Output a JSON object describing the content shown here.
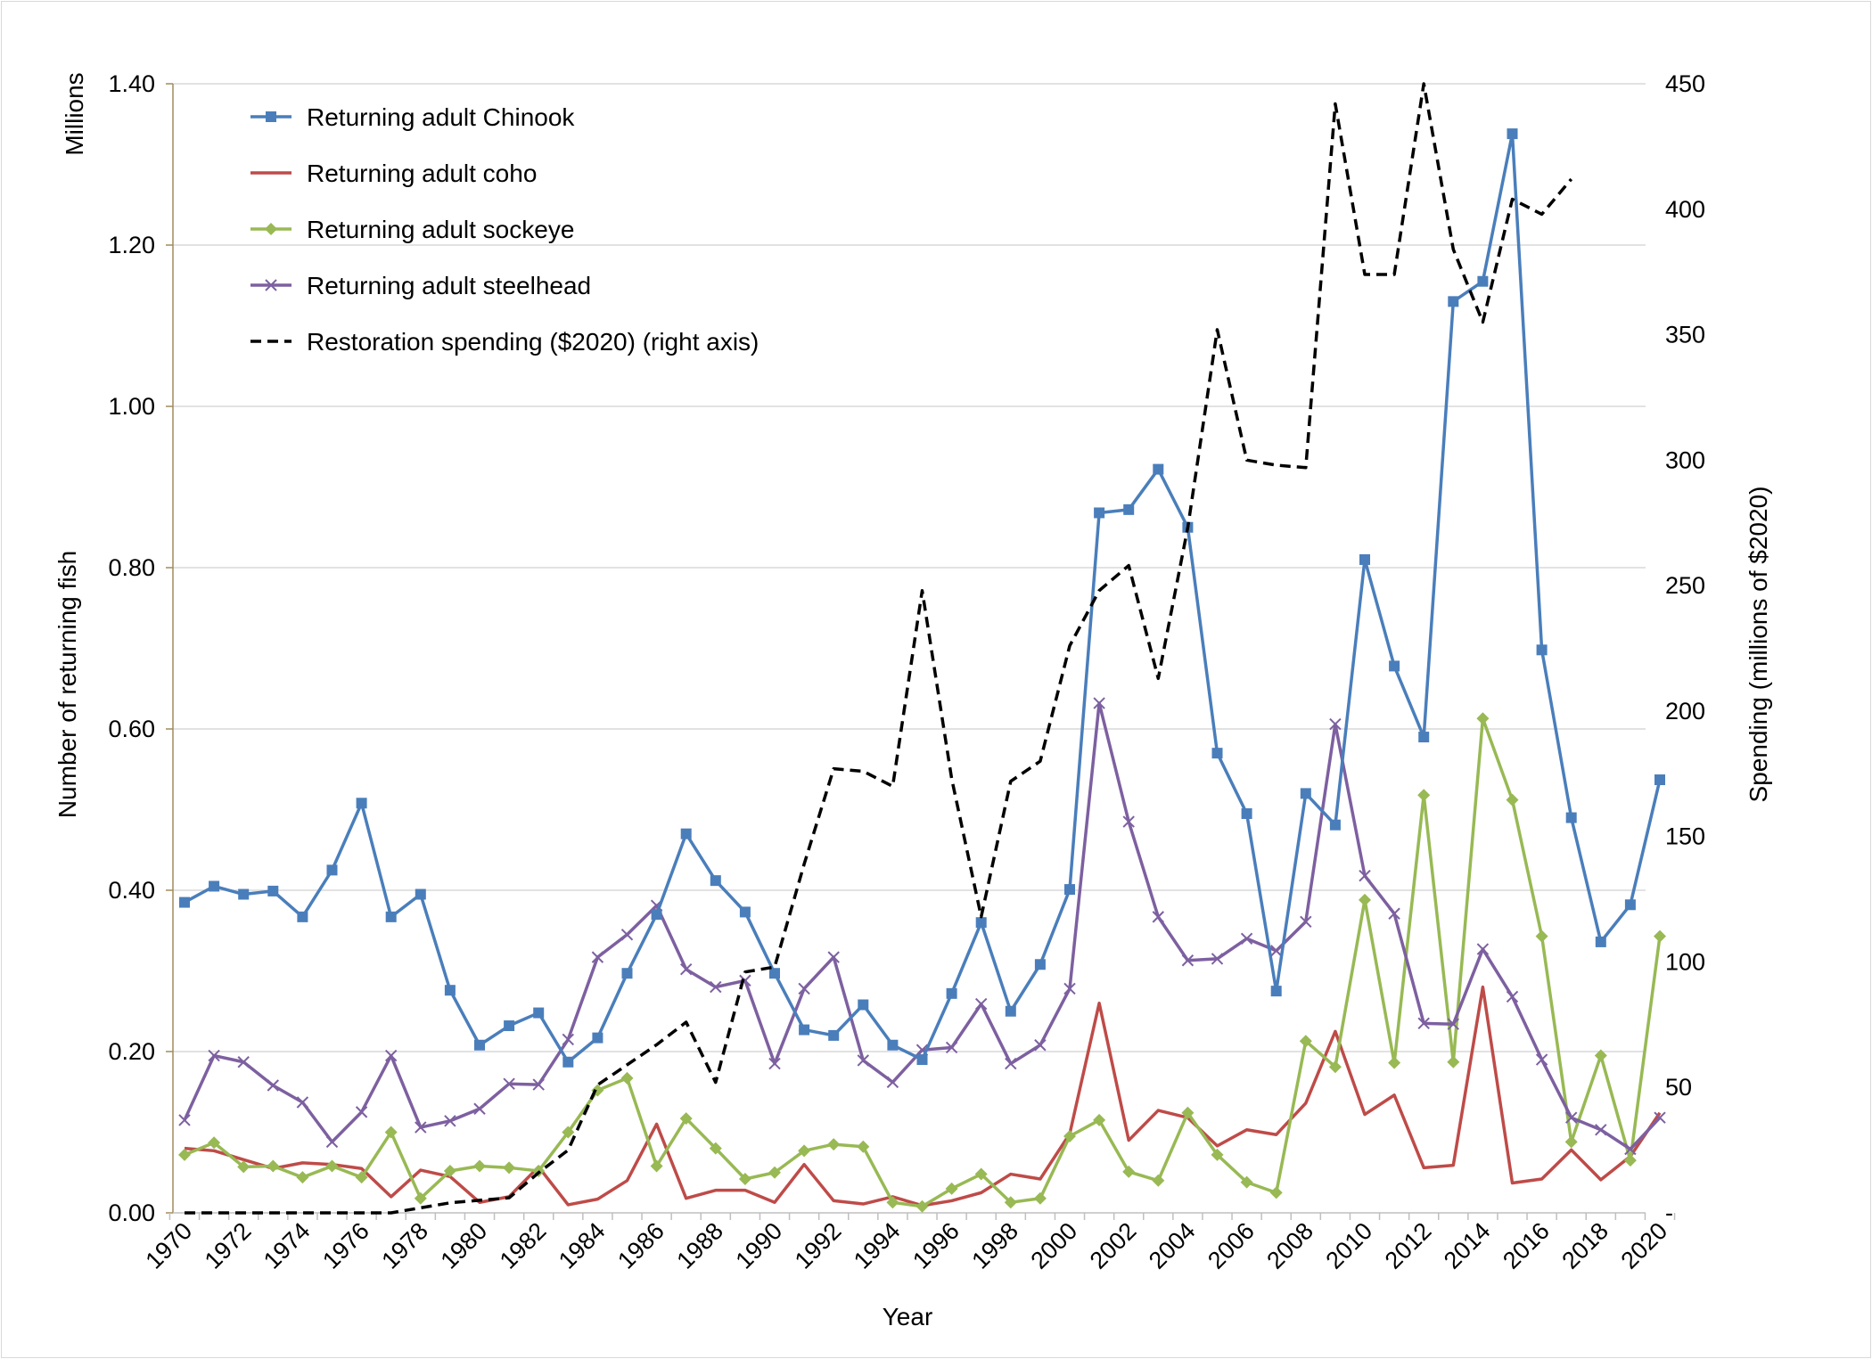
{
  "chart_data": {
    "type": "line",
    "title": "",
    "xlabel": "Year",
    "ylabel": "Number of returning fish",
    "y_unit_label": "Millions",
    "y2label": "Spending (millions of $2020)",
    "x": [
      1970,
      1971,
      1972,
      1973,
      1974,
      1975,
      1976,
      1977,
      1978,
      1979,
      1980,
      1981,
      1982,
      1983,
      1984,
      1985,
      1986,
      1987,
      1988,
      1989,
      1990,
      1991,
      1992,
      1993,
      1994,
      1995,
      1996,
      1997,
      1998,
      1999,
      2000,
      2001,
      2002,
      2003,
      2004,
      2005,
      2006,
      2007,
      2008,
      2009,
      2010,
      2011,
      2012,
      2013,
      2014,
      2015,
      2016,
      2017,
      2018,
      2019,
      2020
    ],
    "x_tick_labels": [
      "1970",
      "1972",
      "1974",
      "1976",
      "1978",
      "1980",
      "1982",
      "1984",
      "1986",
      "1988",
      "1990",
      "1992",
      "1994",
      "1996",
      "1998",
      "2000",
      "2002",
      "2004",
      "2006",
      "2008",
      "2010",
      "2012",
      "2014",
      "2016",
      "2018",
      "2020"
    ],
    "ylim": [
      0,
      1.4
    ],
    "y_tick_labels": [
      "0.00",
      "0.20",
      "0.40",
      "0.60",
      "0.80",
      "1.00",
      "1.20",
      "1.40"
    ],
    "y2lim": [
      0,
      450
    ],
    "y2_tick_labels": [
      "-",
      "50",
      "100",
      "150",
      "200",
      "250",
      "300",
      "350",
      "400",
      "450"
    ],
    "legend_position": "top-left",
    "grid": "horizontal",
    "series": [
      {
        "name": "Returning adult Chinook",
        "axis": "left",
        "color": "#4a7ebb",
        "marker": "square",
        "dash": "solid",
        "values": [
          0.385,
          0.405,
          0.395,
          0.399,
          0.367,
          0.425,
          0.508,
          0.367,
          0.395,
          0.276,
          0.208,
          0.232,
          0.248,
          0.187,
          0.217,
          0.297,
          0.37,
          0.47,
          0.412,
          0.373,
          0.297,
          0.227,
          0.22,
          0.258,
          0.208,
          0.19,
          0.272,
          0.36,
          0.25,
          0.308,
          0.401,
          0.868,
          0.872,
          0.922,
          0.85,
          0.57,
          0.495,
          0.275,
          0.52,
          0.481,
          0.81,
          0.678,
          0.59,
          1.13,
          1.155,
          1.338,
          0.698,
          0.49,
          0.336,
          0.382,
          0.537
        ]
      },
      {
        "name": "Returning adult coho",
        "axis": "left",
        "color": "#be4b48",
        "marker": "none",
        "dash": "solid",
        "values": [
          0.08,
          0.077,
          0.066,
          0.055,
          0.062,
          0.06,
          0.055,
          0.02,
          0.053,
          0.045,
          0.013,
          0.02,
          0.057,
          0.01,
          0.017,
          0.04,
          0.11,
          0.018,
          0.028,
          0.028,
          0.013,
          0.06,
          0.015,
          0.011,
          0.02,
          0.009,
          0.015,
          0.025,
          0.048,
          0.042,
          0.098,
          0.26,
          0.09,
          0.127,
          0.118,
          0.083,
          0.103,
          0.097,
          0.136,
          0.225,
          0.122,
          0.146,
          0.056,
          0.059,
          0.28,
          0.037,
          0.042,
          0.078,
          0.041,
          0.07,
          0.124
        ]
      },
      {
        "name": "Returning adult sockeye",
        "axis": "left",
        "color": "#98b954",
        "marker": "diamond",
        "dash": "solid",
        "values": [
          0.072,
          0.087,
          0.057,
          0.058,
          0.044,
          0.058,
          0.044,
          0.1,
          0.018,
          0.052,
          0.058,
          0.056,
          0.052,
          0.1,
          0.152,
          0.167,
          0.058,
          0.117,
          0.08,
          0.042,
          0.05,
          0.077,
          0.085,
          0.082,
          0.013,
          0.008,
          0.03,
          0.048,
          0.013,
          0.018,
          0.095,
          0.115,
          0.051,
          0.04,
          0.124,
          0.072,
          0.038,
          0.025,
          0.213,
          0.181,
          0.388,
          0.186,
          0.518,
          0.187,
          0.613,
          0.512,
          0.343,
          0.088,
          0.195,
          0.065,
          0.343
        ]
      },
      {
        "name": "Returning adult steelhead",
        "axis": "left",
        "color": "#7d60a0",
        "marker": "x",
        "dash": "solid",
        "values": [
          0.115,
          0.195,
          0.187,
          0.158,
          0.137,
          0.088,
          0.125,
          0.195,
          0.106,
          0.114,
          0.129,
          0.16,
          0.159,
          0.215,
          0.317,
          0.345,
          0.381,
          0.302,
          0.28,
          0.288,
          0.185,
          0.278,
          0.317,
          0.189,
          0.162,
          0.202,
          0.205,
          0.259,
          0.185,
          0.208,
          0.278,
          0.632,
          0.485,
          0.367,
          0.313,
          0.315,
          0.34,
          0.325,
          0.361,
          0.606,
          0.418,
          0.371,
          0.235,
          0.234,
          0.327,
          0.268,
          0.19,
          0.118,
          0.103,
          0.079,
          0.118
        ]
      },
      {
        "name": "Restoration spending ($2020) (right axis)",
        "axis": "right",
        "color": "#000000",
        "marker": "none",
        "dash": "dashed",
        "values": [
          0,
          0,
          0,
          0,
          0,
          0,
          0,
          0,
          2,
          4,
          5,
          6,
          16,
          25,
          51,
          59,
          67,
          76,
          52,
          96,
          98,
          139,
          177,
          176,
          170,
          248,
          173,
          118,
          172,
          180,
          226,
          248,
          258,
          213,
          273,
          352,
          300,
          298,
          297,
          442,
          374,
          374,
          450,
          384,
          355,
          404,
          398,
          412,
          null,
          null,
          null
        ]
      }
    ]
  }
}
